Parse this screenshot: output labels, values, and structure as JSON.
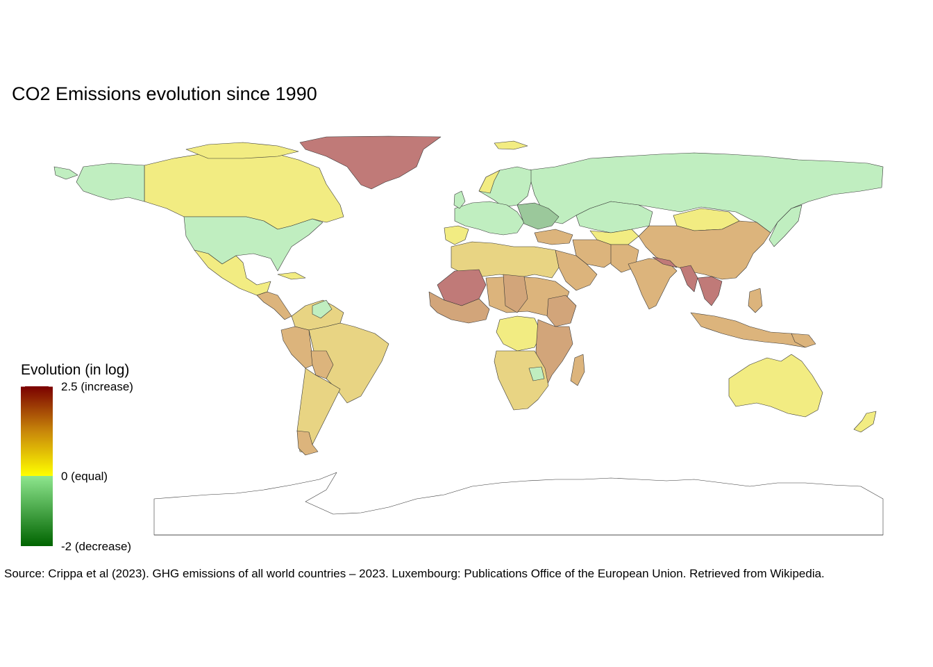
{
  "title": "CO2 Emissions evolution since 1990",
  "legend": {
    "title": "Evolution (in log)",
    "labels": {
      "max": "2.5 (increase)",
      "mid": "0 (equal)",
      "min": "-2 (decrease)"
    },
    "scale": {
      "min": -2,
      "mid": 0,
      "max": 2.5
    },
    "colors": {
      "max": "#7a0000",
      "upper_mid": "#c8860a",
      "mid_increase": "#ffff00",
      "mid_decrease": "#8ee68e",
      "min": "#006400"
    }
  },
  "caption": "Source: Crippa et al (2023). GHG emissions of all world countries – 2023. Luxembourg: Publications Office of the European Union. Retrieved from Wikipedia.",
  "fill_palette": {
    "strong_increase": "#c07a78",
    "increase": "#d2a57a",
    "moderate_increase": "#dcb47c",
    "slight_increase": "#e8d483",
    "near_equal_increase": "#f2ec82",
    "decrease": "#c0eec0",
    "strong_decrease": "#9bc89b",
    "no_data": "#ffffff"
  }
}
